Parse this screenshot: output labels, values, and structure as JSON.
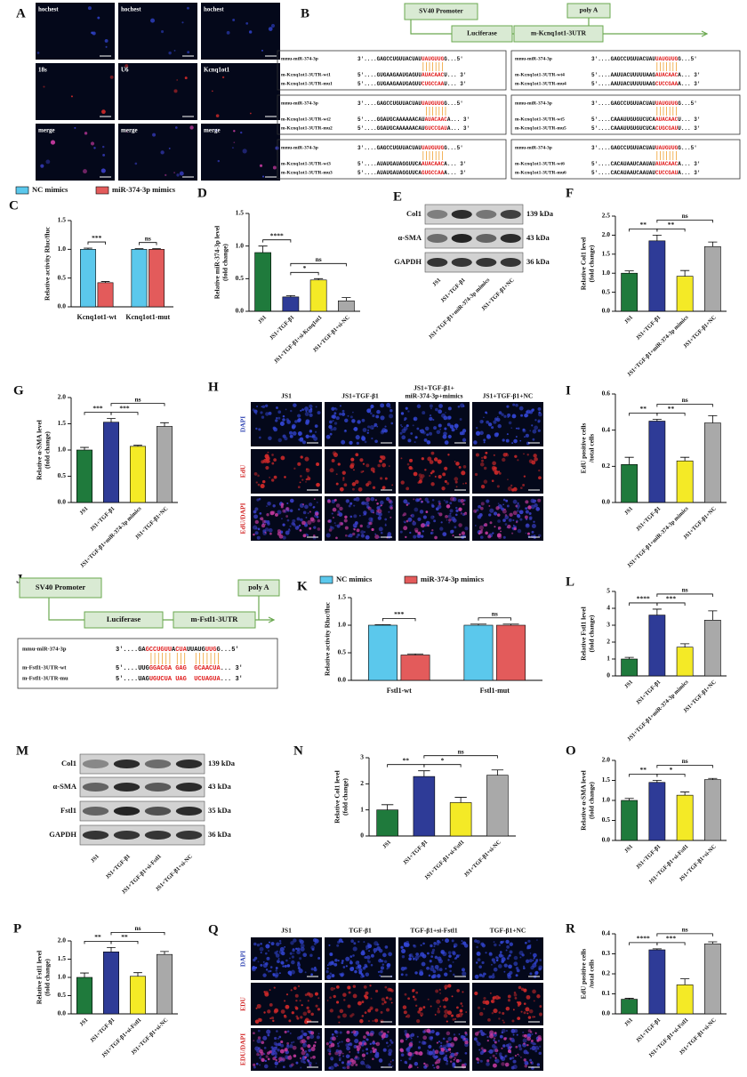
{
  "panels": {
    "A": {
      "label": "A",
      "rows": [
        [
          "hochest",
          "hochest",
          "hochest"
        ],
        [
          "18s",
          "U6",
          "Kcnq1ot1"
        ],
        [
          "merge",
          "merge",
          "merge"
        ]
      ]
    },
    "B": {
      "label": "B",
      "promoter": "SV40 Promoter",
      "luciferase": "Luciferase",
      "utr": "m-Kcnq1ot1-3UTR",
      "polya": "poly A",
      "boxes": [
        {
          "rows": [
            {
              "name": "mmu-miR-374-3p",
              "parts": [
                "3'....GAGCCUGUUACUAU",
                "UAUGUUG",
                "G...5'"
              ]
            },
            {
              "name": "m-Kcnq1ot1-3UTR-wt1",
              "parts": [
                "5'....GUGAAGAAUGAGUU",
                "AUACAAC",
                "U... 3'"
              ]
            },
            {
              "name": "m-Kcnq1ot1-3UTR-mu1",
              "parts": [
                "5'....GUGAAGAAUGAGUU",
                "CUGCCAA",
                "U... 3'"
              ]
            }
          ]
        },
        {
          "rows": [
            {
              "name": "mmu-miR-374-3p",
              "parts": [
                "3'....GAGCCUGUUACUAU",
                "UAUGUUG",
                "G...5'"
              ]
            },
            {
              "name": "m-Kcnq1ot1-3UTR-wt4",
              "parts": [
                "5'....AAUUACUUUUUAAG",
                "AUACAAC",
                "A... 3'"
              ]
            },
            {
              "name": "m-Kcnq1ot1-3UTR-mu4",
              "parts": [
                "5'....AAUUACUUUUUAAG",
                "CUCCGAA",
                "A... 3'"
              ]
            }
          ]
        },
        {
          "rows": [
            {
              "name": "mmu-miR-374-3p",
              "parts": [
                "3'....GAGCCUGUUACUAU",
                "UAUGUUG",
                "G...5'"
              ]
            },
            {
              "name": "m-Kcnq1ot1-3UTR-wt2",
              "parts": [
                "5'....GGAUGCAAAAAACAU",
                "AUACAAC",
                "A... 3'"
              ]
            },
            {
              "name": "m-Kcnq1ot1-3UTR-mu2",
              "parts": [
                "5'....GGAUGCAAAAAACAU",
                "GUCCGAU",
                "A... 3'"
              ]
            }
          ]
        },
        {
          "rows": [
            {
              "name": "mmu-miR-374-3p",
              "parts": [
                "3'....GAGCCUGUUACUAU",
                "UAUGUUG",
                "G...5'"
              ]
            },
            {
              "name": "m-Kcnq1ot1-3UTR-wt5",
              "parts": [
                "5'....CAAAUUGUGUCUCA",
                "AUACAAC",
                "U... 3'"
              ]
            },
            {
              "name": "m-Kcnq1ot1-3UTR-mu5",
              "parts": [
                "5'....CAAAUUGUGUCUCA",
                "CUGCGAU",
                "U... 3'"
              ]
            }
          ]
        },
        {
          "rows": [
            {
              "name": "mmu-miR-374-3p",
              "parts": [
                "3'....GAGCCUGUUACUAU",
                "UAUGUUG",
                "G...5'"
              ]
            },
            {
              "name": "m-Kcnq1ot1-3UTR-wt3",
              "parts": [
                "5'....AUAUGAUAGGUUCA",
                "AUACAAC",
                "A... 3'"
              ]
            },
            {
              "name": "m-Kcnq1ot1-3UTR-mu3",
              "parts": [
                "5'....AUAUGAUAGGUUCA",
                "GUGCCAA",
                "A... 3'"
              ]
            }
          ]
        },
        {
          "rows": [
            {
              "name": "mmu-miR-374-3p",
              "parts": [
                "3'....GAGCCUGUUACUAU",
                "UAUGUUG",
                "G...5'"
              ]
            },
            {
              "name": "m-Kcnq1ot1-3UTR-wt6",
              "parts": [
                "5'....CACAUAAUCAAUAU",
                "AUACAAC",
                "A... 3'"
              ]
            },
            {
              "name": "m-Kcnq1ot1-3UTR-mu6",
              "parts": [
                "5'....CACAUAAUCAAUAU",
                "CUCCGAU",
                "A... 3'"
              ]
            }
          ]
        }
      ]
    },
    "E": {
      "label": "E",
      "bands": [
        {
          "name": "Col1",
          "size": "139 kDa"
        },
        {
          "name": "α-SMA",
          "size": "43 kDa"
        },
        {
          "name": "GAPDH",
          "size": "36 kDa"
        }
      ],
      "lanes": [
        "JS1",
        "JS1+TGF-β1",
        "JS1+TGF-β1+miR-374-3p mimics",
        "JS1+TGF-β1+NC"
      ]
    },
    "H": {
      "label": "H",
      "columns": [
        [
          "JS1"
        ],
        [
          "JS1+TGF-β1"
        ],
        [
          "JS1+TGF-β1+",
          "miR-374-3p+mimics"
        ],
        [
          "JS1+TGF-β1+NC"
        ]
      ],
      "rows": [
        "DAPI",
        "EdU",
        "EdU/DAPI"
      ]
    },
    "J": {
      "label": "J",
      "promoter": "SV40 Promoter",
      "luciferase": "Luciferase",
      "utr": "m-Fstl1-3UTR",
      "polya": "poly A",
      "rows": [
        {
          "name": "mmu-miR-374-3p",
          "parts": [
            "3'....GA",
            "GCCUGUU",
            "A",
            "CUA",
            "UUAUG",
            "UUG",
            "G...5'"
          ]
        },
        {
          "name": "m-Fstl1-3UTR-wt",
          "parts": [
            "5'....UUG",
            "GGACGA",
            " ",
            "GAG",
            "  ",
            "GCAACUA",
            "... 3'"
          ]
        },
        {
          "name": "m-Fstl1-3UTR-mu",
          "parts": [
            "5'....UAG",
            "UGUCUA",
            " ",
            "UAG",
            "  ",
            "UCUAGUA",
            "... 3'"
          ]
        }
      ]
    },
    "M": {
      "label": "M",
      "bands": [
        {
          "name": "Col1",
          "size": "139 kDa"
        },
        {
          "name": "α-SMA",
          "size": "43 kDa"
        },
        {
          "name": "Fstl1",
          "size": "35 kDa"
        },
        {
          "name": "GAPDH",
          "size": "36 kDa"
        }
      ],
      "lanes": [
        "JS1",
        "JS1+TGF-β1",
        "JS1+TGF-β1+si-Fstl1",
        "JS1+TGF-β1+si-NC"
      ]
    },
    "Q": {
      "label": "Q",
      "columns": [
        [
          "JS1"
        ],
        [
          "TGF-β1"
        ],
        [
          "TGF-β1+si-Fstl1"
        ],
        [
          "TGF-β1+NC"
        ]
      ],
      "rows": [
        "DAPI",
        "EDU",
        "EDU/DAPI"
      ]
    }
  },
  "chart_data": [
    {
      "type": "bar",
      "panel": "C",
      "ylabel": [
        "Relative activity Rluc/fluc"
      ],
      "categories": [
        "Kcnq1ot1-wt",
        "Kcnq1ot1-mut"
      ],
      "series": [
        {
          "name": "NC mimics",
          "color": "#5bc8ec",
          "values": [
            1.0,
            1.0
          ],
          "errors": [
            0.02,
            0.01
          ]
        },
        {
          "name": "miR-374-3p mimics",
          "color": "#e35b5b",
          "values": [
            0.42,
            1.0
          ],
          "errors": [
            0.02,
            0.01
          ]
        }
      ],
      "ylim": [
        0,
        1.5
      ],
      "yticks": [
        {
          "value": 0,
          "label": "0.0"
        },
        0.5,
        {
          "value": 1,
          "label": "1.0"
        },
        1.5
      ],
      "annotations": [
        {
          "text": "***"
        },
        {
          "text": "ns"
        }
      ]
    },
    {
      "type": "bar",
      "panel": "D",
      "ylabel": [
        "Relative miR-374-3p level",
        "(fold change)"
      ],
      "categories": [
        "JS1",
        "JS1+TGF-β1",
        "JS1+TGF-β1+si-Kcnq1ot1",
        "JS1+TGF-β1+si-NC"
      ],
      "values": [
        0.9,
        0.22,
        0.48,
        0.16
      ],
      "errors": [
        0.1,
        0.02,
        0.02,
        0.05
      ],
      "colors": [
        "#1f7a3c",
        "#2e3b97",
        "#f4ea26",
        "#a9a9a9"
      ],
      "ylim": [
        0,
        1.5
      ],
      "yticks": [
        {
          "value": 0,
          "label": "0.0"
        },
        0.5,
        {
          "value": 1,
          "label": "1.0"
        },
        1.5
      ],
      "annotations": [
        {
          "text": "****",
          "from": 0,
          "to": 1
        },
        {
          "text": "*",
          "from": 1,
          "to": 2
        },
        {
          "text": "ns",
          "from": 1,
          "to": 3
        }
      ]
    },
    {
      "type": "bar",
      "panel": "F",
      "ylabel": [
        "Relative Col1 level",
        "(fold change)"
      ],
      "categories": [
        "JS1",
        "JS1+TGF-β1",
        "JS1+TGF-β1+miR-374-3p mimics",
        "JS1+TGF-β1+NC"
      ],
      "values": [
        1.0,
        1.85,
        0.92,
        1.7
      ],
      "errors": [
        0.06,
        0.15,
        0.15,
        0.12
      ],
      "colors": [
        "#1f7a3c",
        "#2e3b97",
        "#f4ea26",
        "#a9a9a9"
      ],
      "ylim": [
        0,
        2.5
      ],
      "yticks": [
        {
          "value": 0,
          "label": "0.0"
        },
        0.5,
        {
          "value": 1,
          "label": "1.0"
        },
        1.5,
        {
          "value": 2,
          "label": "2.0"
        },
        2.5
      ],
      "annotations": [
        {
          "text": "**",
          "from": 0,
          "to": 1
        },
        {
          "text": "**",
          "from": 1,
          "to": 2
        },
        {
          "text": "ns",
          "from": 1,
          "to": 3
        }
      ]
    },
    {
      "type": "bar",
      "panel": "G",
      "ylabel": [
        "Relative α-SMA level",
        "(fold change)"
      ],
      "categories": [
        "JS1",
        "JS1+TGF-β1",
        "JS1+TGF-β1+miR-374-3p mimics",
        "JS1+TGF-β1+NC"
      ],
      "values": [
        1.0,
        1.53,
        1.07,
        1.45
      ],
      "errors": [
        0.05,
        0.07,
        0.02,
        0.07
      ],
      "colors": [
        "#1f7a3c",
        "#2e3b97",
        "#f4ea26",
        "#a9a9a9"
      ],
      "ylim": [
        0,
        2
      ],
      "yticks": [
        {
          "value": 0,
          "label": "0.0"
        },
        0.5,
        {
          "value": 1,
          "label": "1.0"
        },
        1.5,
        {
          "value": 2,
          "label": "2.0"
        }
      ],
      "annotations": [
        {
          "text": "***",
          "from": 0,
          "to": 1
        },
        {
          "text": "***",
          "from": 1,
          "to": 2
        },
        {
          "text": "ns",
          "from": 1,
          "to": 3
        }
      ]
    },
    {
      "type": "bar",
      "panel": "I",
      "ylabel": [
        "EdU positive cells",
        "/total cells"
      ],
      "categories": [
        "JS1",
        "JS1+TGF-β1",
        "JS1+TGF-β1+miR-374-3p mimics",
        "JS1+TGF-β1+NC"
      ],
      "values": [
        0.21,
        0.45,
        0.23,
        0.44
      ],
      "errors": [
        0.04,
        0.01,
        0.02,
        0.04
      ],
      "colors": [
        "#1f7a3c",
        "#2e3b97",
        "#f4ea26",
        "#a9a9a9"
      ],
      "ylim": [
        0,
        0.6
      ],
      "yticks": [
        {
          "value": 0,
          "label": "0.0"
        },
        0.2,
        0.4,
        0.6
      ],
      "annotations": [
        {
          "text": "**",
          "from": 0,
          "to": 1
        },
        {
          "text": "**",
          "from": 1,
          "to": 2
        },
        {
          "text": "ns",
          "from": 1,
          "to": 3
        }
      ]
    },
    {
      "type": "bar",
      "panel": "K",
      "ylabel": [
        "Relative activity Rluc/fluc"
      ],
      "categories": [
        "Fstl1-wt",
        "Fstl1-mut"
      ],
      "series": [
        {
          "name": "NC mimics",
          "color": "#5bc8ec",
          "values": [
            1.0,
            1.0
          ],
          "errors": [
            0.01,
            0.02
          ]
        },
        {
          "name": "miR-374-3p mimics",
          "color": "#e35b5b",
          "values": [
            0.46,
            1.0
          ],
          "errors": [
            0.02,
            0.02
          ]
        }
      ],
      "ylim": [
        0,
        1.5
      ],
      "yticks": [
        {
          "value": 0,
          "label": "0.0"
        },
        0.5,
        {
          "value": 1,
          "label": "1.0"
        },
        1.5
      ],
      "annotations": [
        {
          "text": "***"
        },
        {
          "text": "ns"
        }
      ]
    },
    {
      "type": "bar",
      "panel": "L",
      "ylabel": [
        "Relative Fstl1 level",
        "(fold change)"
      ],
      "categories": [
        "JS1",
        "JS1+TGF-β1",
        "JS1+TGF-β1+miR-374-3p mimics",
        "JS1+TGF-β1+NC"
      ],
      "values": [
        1.0,
        3.6,
        1.7,
        3.3
      ],
      "errors": [
        0.1,
        0.35,
        0.2,
        0.55
      ],
      "colors": [
        "#1f7a3c",
        "#2e3b97",
        "#f4ea26",
        "#a9a9a9"
      ],
      "ylim": [
        0,
        5
      ],
      "yticks": [
        0,
        1,
        2,
        3,
        4,
        5
      ],
      "annotations": [
        {
          "text": "****",
          "from": 0,
          "to": 1
        },
        {
          "text": "***",
          "from": 1,
          "to": 2
        },
        {
          "text": "ns",
          "from": 1,
          "to": 3
        }
      ]
    },
    {
      "type": "bar",
      "panel": "N",
      "ylabel": [
        "Relative Col1 level",
        "(fold change)"
      ],
      "categories": [
        "JS1",
        "JS1+TGF-β1",
        "JS1+TGF-β1+si-Fstl1",
        "JS1+TGF-β1+si-NC"
      ],
      "values": [
        1.0,
        2.28,
        1.28,
        2.33
      ],
      "errors": [
        0.2,
        0.22,
        0.2,
        0.2
      ],
      "colors": [
        "#1f7a3c",
        "#2e3b97",
        "#f4ea26",
        "#a9a9a9"
      ],
      "ylim": [
        0,
        3
      ],
      "yticks": [
        0,
        1,
        2,
        3
      ],
      "annotations": [
        {
          "text": "**",
          "from": 0,
          "to": 1
        },
        {
          "text": "*",
          "from": 1,
          "to": 2
        },
        {
          "text": "ns",
          "from": 1,
          "to": 3
        }
      ]
    },
    {
      "type": "bar",
      "panel": "O",
      "ylabel": [
        "Relative α-SMA level",
        "(fold change)"
      ],
      "categories": [
        "JS1",
        "JS1+TGF-β1",
        "JS1+TGF-β1+si-Fstl1",
        "JS1+TGF-β1+si-NC"
      ],
      "values": [
        1.0,
        1.45,
        1.13,
        1.52
      ],
      "errors": [
        0.05,
        0.05,
        0.08,
        0.03
      ],
      "colors": [
        "#1f7a3c",
        "#2e3b97",
        "#f4ea26",
        "#a9a9a9"
      ],
      "ylim": [
        0,
        2
      ],
      "yticks": [
        {
          "value": 0,
          "label": "0.0"
        },
        0.5,
        {
          "value": 1,
          "label": "1.0"
        },
        1.5,
        {
          "value": 2,
          "label": "2.0"
        }
      ],
      "annotations": [
        {
          "text": "**",
          "from": 0,
          "to": 1
        },
        {
          "text": "*",
          "from": 1,
          "to": 2
        },
        {
          "text": "ns",
          "from": 1,
          "to": 3
        }
      ]
    },
    {
      "type": "bar",
      "panel": "P",
      "ylabel": [
        "Relative Fstl1 level",
        "(fold change)"
      ],
      "categories": [
        "JS1",
        "JS1+TGF-β1",
        "JS1+TGF-β1+si-Fstl1",
        "JS1+TGF-β1+si-NC"
      ],
      "values": [
        1.0,
        1.7,
        1.03,
        1.63
      ],
      "errors": [
        0.12,
        0.12,
        0.1,
        0.08
      ],
      "colors": [
        "#1f7a3c",
        "#2e3b97",
        "#f4ea26",
        "#a9a9a9"
      ],
      "ylim": [
        0,
        2
      ],
      "yticks": [
        {
          "value": 0,
          "label": "0.0"
        },
        0.5,
        {
          "value": 1,
          "label": "1.0"
        },
        1.5,
        {
          "value": 2,
          "label": "2.0"
        }
      ],
      "annotations": [
        {
          "text": "**",
          "from": 0,
          "to": 1
        },
        {
          "text": "**",
          "from": 1,
          "to": 2
        },
        {
          "text": "ns",
          "from": 1,
          "to": 3
        }
      ]
    },
    {
      "type": "bar",
      "panel": "R",
      "ylabel": [
        "EdU positive cells",
        "/total cells"
      ],
      "categories": [
        "JS1",
        "JS1+TGF-β1",
        "JS1+TGF-β1+si-Fstl1",
        "JS1+TGF-β1+si-NC"
      ],
      "values": [
        0.073,
        0.32,
        0.145,
        0.35
      ],
      "errors": [
        0.005,
        0.005,
        0.03,
        0.01
      ],
      "colors": [
        "#1f7a3c",
        "#2e3b97",
        "#f4ea26",
        "#a9a9a9"
      ],
      "ylim": [
        0,
        0.4
      ],
      "yticks": [
        {
          "value": 0,
          "label": "0.0"
        },
        0.1,
        0.2,
        0.3,
        0.4
      ],
      "annotations": [
        {
          "text": "****",
          "from": 0,
          "to": 1
        },
        {
          "text": "***",
          "from": 1,
          "to": 2
        },
        {
          "text": "ns",
          "from": 1,
          "to": 3
        }
      ]
    }
  ]
}
